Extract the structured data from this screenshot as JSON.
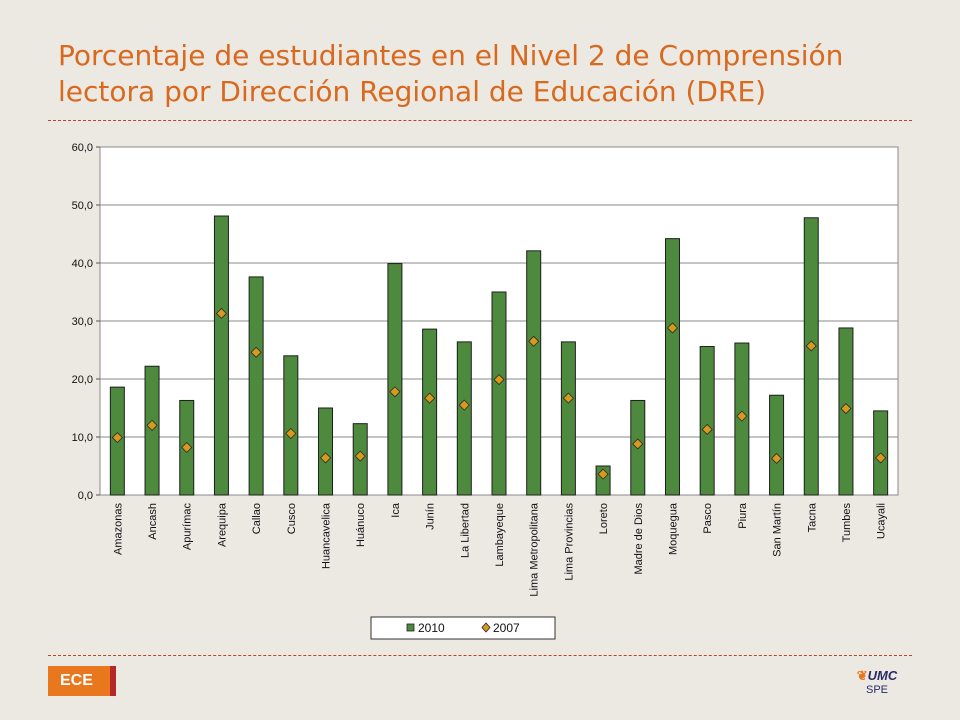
{
  "slide": {
    "title": "Porcentaje de estudiantes en el Nivel 2 de Comprensión lectora por Dirección Regional de Educación (DRE)",
    "badge": "ECE",
    "logo_text": "UMC",
    "logo_sub": "SPE",
    "colors": {
      "title": "#d8691e",
      "bar": "#4e8a3e",
      "marker": "#d79a1c",
      "badge": "#e8771e",
      "badge_accent": "#b5282a",
      "divider": "#b5472f"
    }
  },
  "chart_data": {
    "type": "bar",
    "title": "",
    "xlabel": "",
    "ylabel": "",
    "ylim": [
      0,
      60
    ],
    "yticks": [
      "0,0",
      "10,0",
      "20,0",
      "30,0",
      "40,0",
      "50,0",
      "60,0"
    ],
    "grid": true,
    "legend_position": "bottom",
    "categories": [
      "Amazonas",
      "Ancash",
      "Apurímac",
      "Arequipa",
      "Callao",
      "Cusco",
      "Huancavelica",
      "Huánuco",
      "Ica",
      "Junín",
      "La Libertad",
      "Lambayeque",
      "Lima Metropolitana",
      "Lima Provincias",
      "Loreto",
      "Madre de Dios",
      "Moquegua",
      "Pasco",
      "Piura",
      "San Martín",
      "Tacna",
      "Tumbes",
      "Ucayali"
    ],
    "series": [
      {
        "name": "2010",
        "kind": "bar",
        "values": [
          18.6,
          22.2,
          16.3,
          48.1,
          37.6,
          24.0,
          15.0,
          12.3,
          39.9,
          28.6,
          26.4,
          35.0,
          42.1,
          26.4,
          5.0,
          16.3,
          44.2,
          25.6,
          26.2,
          17.2,
          47.8,
          28.8,
          14.5
        ]
      },
      {
        "name": "2007",
        "kind": "marker",
        "values": [
          9.9,
          12.0,
          8.2,
          31.3,
          24.6,
          10.6,
          6.4,
          6.7,
          17.8,
          16.7,
          15.5,
          19.9,
          26.5,
          16.7,
          3.6,
          8.8,
          28.8,
          11.3,
          13.6,
          6.3,
          25.7,
          14.9,
          6.4
        ]
      }
    ]
  }
}
